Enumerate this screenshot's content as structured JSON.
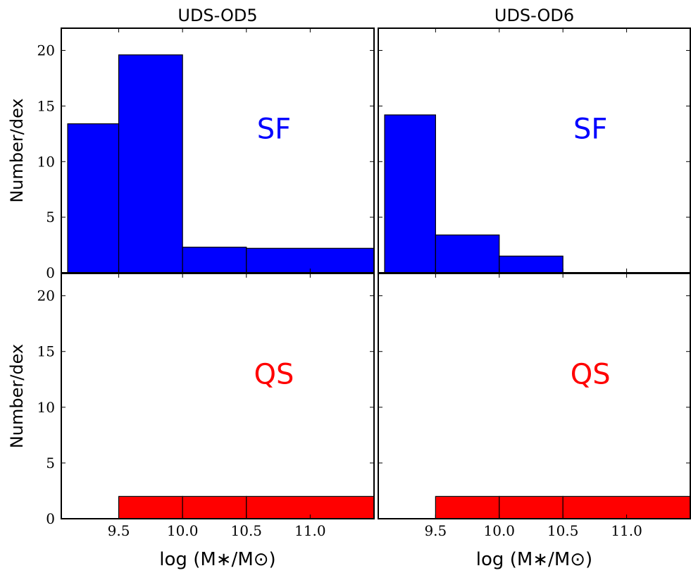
{
  "chart_data": [
    {
      "type": "histogram",
      "title": "UDS-OD5",
      "ylabel": "Number/dex",
      "annotation": "SF",
      "color": "#0000ff",
      "annotation_color": "#0000ff",
      "bins": [
        9.1,
        9.5,
        10.0,
        10.5,
        11.5
      ],
      "values": [
        13.4,
        19.6,
        2.3,
        2.2
      ],
      "xlim": [
        9.05,
        11.5
      ],
      "ylim": [
        0,
        22
      ],
      "xticks": [
        9.5,
        10,
        10.5,
        11
      ],
      "xticklabels": false,
      "yticks": [
        0,
        5,
        10,
        15,
        20
      ],
      "yticklabels": true
    },
    {
      "type": "histogram",
      "title": "UDS-OD6",
      "annotation": "SF",
      "color": "#0000ff",
      "annotation_color": "#0000ff",
      "bins": [
        9.1,
        9.5,
        10.0,
        10.5,
        11.5
      ],
      "values": [
        14.2,
        3.4,
        1.5,
        0
      ],
      "xlim": [
        9.05,
        11.5
      ],
      "ylim": [
        0,
        22
      ],
      "xticks": [
        9.5,
        10,
        10.5,
        11
      ],
      "xticklabels": false,
      "yticks": [
        0,
        5,
        10,
        15,
        20
      ],
      "yticklabels": false
    },
    {
      "type": "histogram",
      "ylabel": "Number/dex",
      "xlabel": "log (M∗/M⊙)",
      "annotation": "QS",
      "color": "#ff0000",
      "annotation_color": "#ff0000",
      "bins": [
        9.1,
        9.5,
        10.0,
        10.5,
        11.5
      ],
      "values": [
        0,
        2,
        2,
        2
      ],
      "xlim": [
        9.05,
        11.5
      ],
      "ylim": [
        0,
        22
      ],
      "xticks": [
        9.5,
        {
          "value": 10,
          "label": "10.0"
        },
        10.5,
        {
          "value": 11,
          "label": "11.0"
        }
      ],
      "xticklabels": true,
      "yticks": [
        0,
        5,
        10,
        15,
        20
      ],
      "yticklabels": true
    },
    {
      "type": "histogram",
      "xlabel": "log (M∗/M⊙)",
      "annotation": "QS",
      "color": "#ff0000",
      "annotation_color": "#ff0000",
      "bins": [
        9.1,
        9.5,
        10.0,
        10.5,
        11.5
      ],
      "values": [
        0,
        2,
        2,
        2
      ],
      "xlim": [
        9.05,
        11.5
      ],
      "ylim": [
        0,
        22
      ],
      "xticks": [
        9.5,
        {
          "value": 10,
          "label": "10.0"
        },
        10.5,
        {
          "value": 11,
          "label": "11.0"
        }
      ],
      "xticklabels": true,
      "yticks": [
        0,
        5,
        10,
        15,
        20
      ],
      "yticklabels": false
    }
  ]
}
